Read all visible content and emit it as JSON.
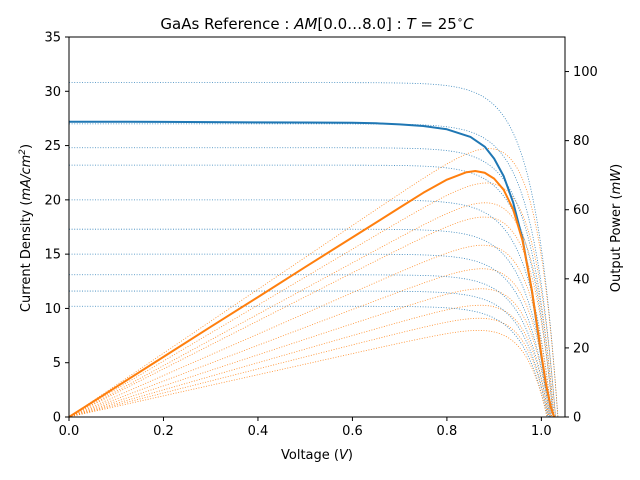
{
  "chart_data": {
    "type": "line",
    "title": "GaAs Reference : AM[0.0...8.0] : T = 25°C",
    "title_parts": {
      "prefix": "GaAs Reference : ",
      "am_symbol": "AM",
      "am_range": "[0.0…8.0] : ",
      "t_symbol": "T",
      "t_value": " = 25",
      "degree": "∘",
      "unit": "C"
    },
    "xlabel": {
      "prefix": "Voltage (",
      "italic": "V",
      "suffix": ")"
    },
    "ylabel_left": {
      "prefix": "Current Density (",
      "italic": "mA/cm",
      "sup": "2",
      "suffix": ")"
    },
    "ylabel_right": {
      "prefix": "Output Power (",
      "italic": "mW",
      "suffix": ")"
    },
    "xlim": [
      0.0,
      1.05
    ],
    "ylim_left": [
      0,
      35
    ],
    "ylim_right": [
      0,
      110
    ],
    "x_ticks": [
      "0.0",
      "0.2",
      "0.4",
      "0.6",
      "0.8",
      "1.0"
    ],
    "x_tick_values": [
      0.0,
      0.2,
      0.4,
      0.6,
      0.8,
      1.0
    ],
    "y_left_ticks": [
      "0",
      "5",
      "10",
      "15",
      "20",
      "25",
      "30",
      "35"
    ],
    "y_left_tick_values": [
      0,
      5,
      10,
      15,
      20,
      25,
      30,
      35
    ],
    "y_right_ticks": [
      "0",
      "20",
      "40",
      "60",
      "80",
      "100"
    ],
    "y_right_tick_values": [
      0,
      20,
      40,
      60,
      80,
      100
    ],
    "grid": false,
    "colors": {
      "current": "#1f77b4",
      "power": "#ff7f0e"
    },
    "highlighted_series": {
      "current_x": [
        0.0,
        0.1,
        0.2,
        0.3,
        0.4,
        0.5,
        0.6,
        0.65,
        0.7,
        0.75,
        0.8,
        0.85,
        0.88,
        0.9,
        0.92,
        0.94,
        0.96,
        0.98,
        1.0,
        1.01,
        1.02,
        1.027
      ],
      "current_y": [
        27.2,
        27.2,
        27.18,
        27.16,
        27.14,
        27.12,
        27.1,
        27.05,
        26.95,
        26.8,
        26.5,
        25.8,
        24.9,
        23.8,
        22.2,
        19.8,
        16.4,
        11.6,
        5.6,
        2.9,
        0.9,
        0.0
      ],
      "power_x": [
        0.0,
        0.1,
        0.2,
        0.3,
        0.4,
        0.5,
        0.6,
        0.7,
        0.75,
        0.8,
        0.84,
        0.86,
        0.88,
        0.9,
        0.92,
        0.94,
        0.96,
        0.98,
        1.0,
        1.01,
        1.02,
        1.027
      ],
      "power_y": [
        0.0,
        8.7,
        17.4,
        26.1,
        34.7,
        43.4,
        52.0,
        60.6,
        64.9,
        68.7,
        70.8,
        71.2,
        70.7,
        69.0,
        65.8,
        60.2,
        51.1,
        36.6,
        18.0,
        9.4,
        2.9,
        0.0
      ]
    },
    "family_current_plateaus": [
      30.8,
      27.0,
      24.8,
      23.2,
      20.0,
      17.3,
      15.0,
      13.1,
      11.6,
      10.2
    ],
    "family_voc": [
      1.035,
      1.03,
      1.027,
      1.025,
      1.022,
      1.02,
      1.018,
      1.016,
      1.014,
      1.012
    ]
  }
}
